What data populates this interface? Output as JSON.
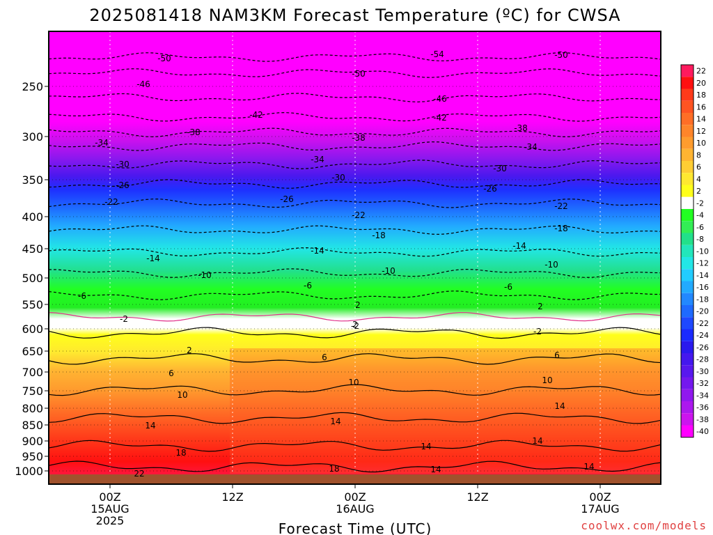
{
  "chart_data": {
    "type": "heatmap",
    "title": "2025081418 NAM3KM Forecast Temperature (ºC) for CWSA",
    "xlabel": "Forecast Time (UTC)",
    "ylabel": "",
    "x_ticks": [
      {
        "lines": [
          "00Z",
          "15AUG",
          "2025"
        ]
      },
      {
        "lines": [
          "12Z"
        ]
      },
      {
        "lines": [
          "00Z",
          "16AUG"
        ]
      },
      {
        "lines": [
          "12Z"
        ]
      },
      {
        "lines": [
          "00Z",
          "17AUG"
        ]
      }
    ],
    "y_ticks": [
      250,
      300,
      350,
      400,
      450,
      500,
      550,
      600,
      650,
      700,
      750,
      800,
      850,
      900,
      950,
      1000
    ],
    "colorbar": {
      "labels": [
        22,
        20,
        18,
        16,
        14,
        12,
        10,
        8,
        6,
        4,
        2,
        -2,
        -4,
        -6,
        -8,
        -10,
        -12,
        -14,
        -16,
        -18,
        -20,
        -22,
        -24,
        -26,
        -28,
        -30,
        -32,
        -34,
        -36,
        -38,
        -40
      ],
      "colors": [
        "#ff1a5e",
        "#ff1010",
        "#ff3a1a",
        "#ff5422",
        "#ff6e26",
        "#ff852a",
        "#ff9c2e",
        "#ffb432",
        "#ffcd34",
        "#ffe830",
        "#ffff1a",
        "#ffffff",
        "#22ff22",
        "#33ee55",
        "#22e08a",
        "#22e6bb",
        "#22e6e6",
        "#22ccff",
        "#22aaff",
        "#2288ff",
        "#1e6aff",
        "#1e48ff",
        "#1a2aff",
        "#2a1aee",
        "#4418ee",
        "#5818ee",
        "#7418ee",
        "#9018ee",
        "#ac18ee",
        "#cc14ee",
        "#ff00ff"
      ]
    },
    "contour_labels": [
      {
        "text": "-54"
      },
      {
        "text": "-50"
      },
      {
        "text": "-50"
      },
      {
        "text": "-50"
      },
      {
        "text": "-46"
      },
      {
        "text": "-46"
      },
      {
        "text": "-42"
      },
      {
        "text": "-42"
      },
      {
        "text": "-38"
      },
      {
        "text": "-38"
      },
      {
        "text": "-38"
      },
      {
        "text": "-34"
      },
      {
        "text": "-34"
      },
      {
        "text": "-34"
      },
      {
        "text": "-30"
      },
      {
        "text": "-30"
      },
      {
        "text": "-30"
      },
      {
        "text": "-26"
      },
      {
        "text": "-26"
      },
      {
        "text": "-26"
      },
      {
        "text": "-22"
      },
      {
        "text": "-22"
      },
      {
        "text": "-22"
      },
      {
        "text": "-18"
      },
      {
        "text": "-18"
      },
      {
        "text": "-14"
      },
      {
        "text": "-14"
      },
      {
        "text": "-14"
      },
      {
        "text": "-10"
      },
      {
        "text": "-10"
      },
      {
        "text": "-10"
      },
      {
        "text": "-6"
      },
      {
        "text": "-6"
      },
      {
        "text": "-6"
      },
      {
        "text": "-2"
      },
      {
        "text": "-2"
      },
      {
        "text": "-2"
      },
      {
        "text": "2"
      },
      {
        "text": "2"
      },
      {
        "text": "2"
      },
      {
        "text": "2"
      },
      {
        "text": "6"
      },
      {
        "text": "6"
      },
      {
        "text": "6"
      },
      {
        "text": "10"
      },
      {
        "text": "10"
      },
      {
        "text": "10"
      },
      {
        "text": "14"
      },
      {
        "text": "14"
      },
      {
        "text": "14"
      },
      {
        "text": "14"
      },
      {
        "text": "14"
      },
      {
        "text": "14"
      },
      {
        "text": "14"
      },
      {
        "text": "18"
      },
      {
        "text": "18"
      },
      {
        "text": "22"
      }
    ],
    "colors": {
      "ground": "#a0522d",
      "freezing_line": "#e0308a",
      "grid": "#ffffff"
    }
  },
  "credit": "coolwx.com/models"
}
